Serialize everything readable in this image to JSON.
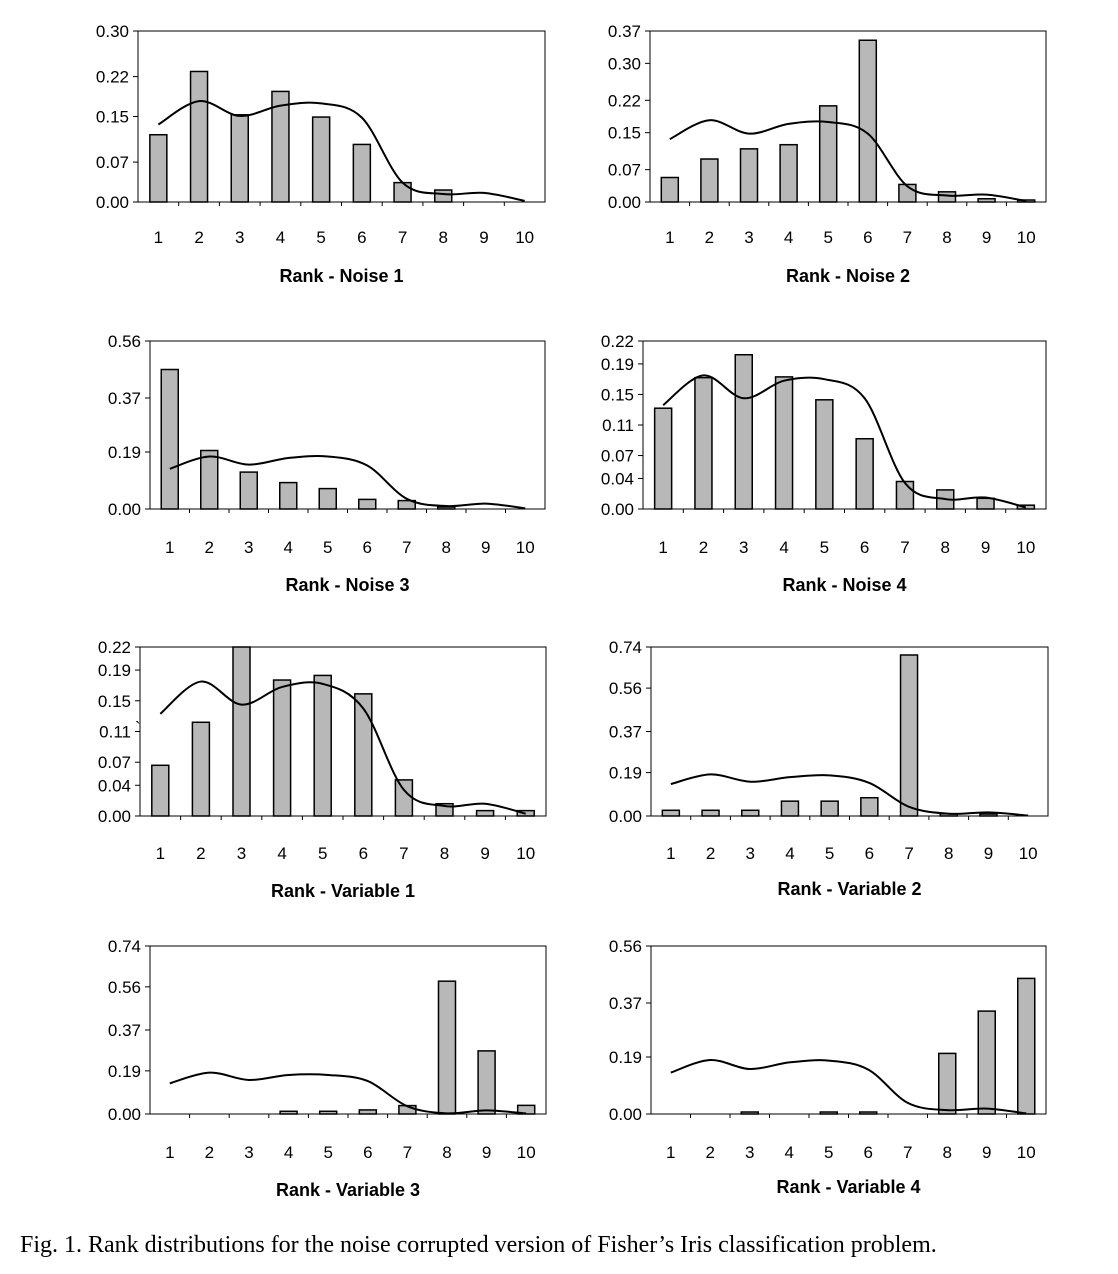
{
  "caption": "Fig. 1. Rank distributions for the noise corrupted version of Fisher’s Iris classification problem.",
  "colors": {
    "bar_fill": "#b8b8b8",
    "bar_stroke": "#000000",
    "line": "#000000",
    "axis": "#000000"
  },
  "chart_data": [
    {
      "type": "bar",
      "xlabel": "Rank - Noise 1",
      "categories": [
        "1",
        "2",
        "3",
        "4",
        "5",
        "6",
        "7",
        "8",
        "9",
        "10"
      ],
      "ylim": [
        0,
        0.3
      ],
      "yticks": [
        "0.00",
        "0.07",
        "0.15",
        "0.22",
        "0.30"
      ],
      "series": [
        {
          "kind": "bar",
          "values": [
            0.118,
            0.229,
            0.153,
            0.194,
            0.149,
            0.101,
            0.034,
            0.021,
            0,
            0
          ]
        },
        {
          "kind": "line",
          "values": [
            0.136,
            0.177,
            0.151,
            0.169,
            0.173,
            0.148,
            0.034,
            0.014,
            0.016,
            0.002
          ]
        }
      ]
    },
    {
      "type": "bar",
      "xlabel": "Rank - Noise 2",
      "categories": [
        "1",
        "2",
        "3",
        "4",
        "5",
        "6",
        "7",
        "8",
        "9",
        "10"
      ],
      "ylim": [
        0,
        0.37
      ],
      "yticks": [
        "0.00",
        "0.07",
        "0.15",
        "0.22",
        "0.30",
        "0.37"
      ],
      "series": [
        {
          "kind": "bar",
          "values": [
            0.053,
            0.093,
            0.115,
            0.124,
            0.208,
            0.35,
            0.038,
            0.022,
            0.007,
            0.004
          ]
        },
        {
          "kind": "line",
          "values": [
            0.136,
            0.177,
            0.148,
            0.169,
            0.173,
            0.148,
            0.034,
            0.014,
            0.016,
            0.002
          ]
        }
      ]
    },
    {
      "type": "bar",
      "xlabel": "Rank - Noise 3",
      "categories": [
        "1",
        "2",
        "3",
        "4",
        "5",
        "6",
        "7",
        "8",
        "9",
        "10"
      ],
      "ylim": [
        0,
        0.56
      ],
      "yticks": [
        "0.00",
        "0.19",
        "0.37",
        "0.56"
      ],
      "series": [
        {
          "kind": "bar",
          "values": [
            0.465,
            0.195,
            0.123,
            0.088,
            0.068,
            0.032,
            0.028,
            0.004,
            0,
            0
          ]
        },
        {
          "kind": "line",
          "values": [
            0.134,
            0.175,
            0.148,
            0.17,
            0.175,
            0.145,
            0.034,
            0.01,
            0.018,
            0.002
          ]
        }
      ]
    },
    {
      "type": "bar",
      "xlabel": "Rank - Noise 4",
      "categories": [
        "1",
        "2",
        "3",
        "4",
        "5",
        "6",
        "7",
        "8",
        "9",
        "10"
      ],
      "ylim": [
        0,
        0.22
      ],
      "yticks": [
        "0.00",
        "0.04",
        "0.07",
        "0.11",
        "0.15",
        "0.19",
        "0.22"
      ],
      "series": [
        {
          "kind": "bar",
          "values": [
            0.132,
            0.172,
            0.202,
            0.173,
            0.143,
            0.092,
            0.036,
            0.025,
            0.014,
            0.005
          ]
        },
        {
          "kind": "line",
          "values": [
            0.136,
            0.175,
            0.145,
            0.168,
            0.17,
            0.145,
            0.034,
            0.013,
            0.015,
            0.002
          ]
        }
      ]
    },
    {
      "type": "bar",
      "xlabel": "Rank - Variable 1",
      "categories": [
        "1",
        "2",
        "3",
        "4",
        "5",
        "6",
        "7",
        "8",
        "9",
        "10"
      ],
      "ylim": [
        0,
        0.22
      ],
      "yticks": [
        "0.00",
        "0.04",
        "0.07",
        "0.11",
        "0.15",
        "0.19",
        "0.22"
      ],
      "ytick_marks": [
        "",
        "",
        "",
        "`",
        "",
        "",
        ""
      ],
      "series": [
        {
          "kind": "bar",
          "values": [
            0.066,
            0.122,
            0.22,
            0.177,
            0.183,
            0.159,
            0.047,
            0.016,
            0.007,
            0.007
          ]
        },
        {
          "kind": "line",
          "values": [
            0.133,
            0.175,
            0.145,
            0.168,
            0.172,
            0.14,
            0.034,
            0.013,
            0.016,
            0.003
          ]
        }
      ]
    },
    {
      "type": "bar",
      "xlabel": "Rank - Variable 2",
      "categories": [
        "1",
        "2",
        "3",
        "4",
        "5",
        "6",
        "7",
        "8",
        "9",
        "10"
      ],
      "ylim": [
        0,
        0.74
      ],
      "yticks": [
        "0.00",
        "0.19",
        "0.37",
        "0.56",
        "0.74"
      ],
      "series": [
        {
          "kind": "bar",
          "values": [
            0.025,
            0.025,
            0.025,
            0.065,
            0.065,
            0.08,
            0.705,
            0.01,
            0.005,
            0
          ]
        },
        {
          "kind": "line",
          "values": [
            0.14,
            0.182,
            0.15,
            0.17,
            0.178,
            0.145,
            0.04,
            0.01,
            0.016,
            0.002
          ]
        }
      ]
    },
    {
      "type": "bar",
      "xlabel": "Rank - Variable 3",
      "categories": [
        "1",
        "2",
        "3",
        "4",
        "5",
        "6",
        "7",
        "8",
        "9",
        "10"
      ],
      "ylim": [
        0,
        0.74
      ],
      "yticks": [
        "0.00",
        "0.19",
        "0.37",
        "0.56",
        "0.74"
      ],
      "series": [
        {
          "kind": "bar",
          "values": [
            0,
            0,
            0,
            0.012,
            0.012,
            0.018,
            0.037,
            0.585,
            0.278,
            0.038
          ]
        },
        {
          "kind": "line",
          "values": [
            0.135,
            0.182,
            0.15,
            0.172,
            0.172,
            0.145,
            0.034,
            0.003,
            0.016,
            0.002
          ]
        }
      ]
    },
    {
      "type": "bar",
      "xlabel": "Rank - Variable 4",
      "categories": [
        "1",
        "2",
        "3",
        "4",
        "5",
        "6",
        "7",
        "8",
        "9",
        "10"
      ],
      "ylim": [
        0,
        0.56
      ],
      "yticks": [
        "0.00",
        "0.19",
        "0.37",
        "0.56"
      ],
      "series": [
        {
          "kind": "bar",
          "values": [
            0,
            0,
            0.004,
            0,
            0.004,
            0.004,
            0,
            0.202,
            0.343,
            0.452
          ]
        },
        {
          "kind": "line",
          "values": [
            0.138,
            0.18,
            0.15,
            0.172,
            0.178,
            0.148,
            0.037,
            0.013,
            0.018,
            0.002
          ]
        }
      ]
    }
  ]
}
